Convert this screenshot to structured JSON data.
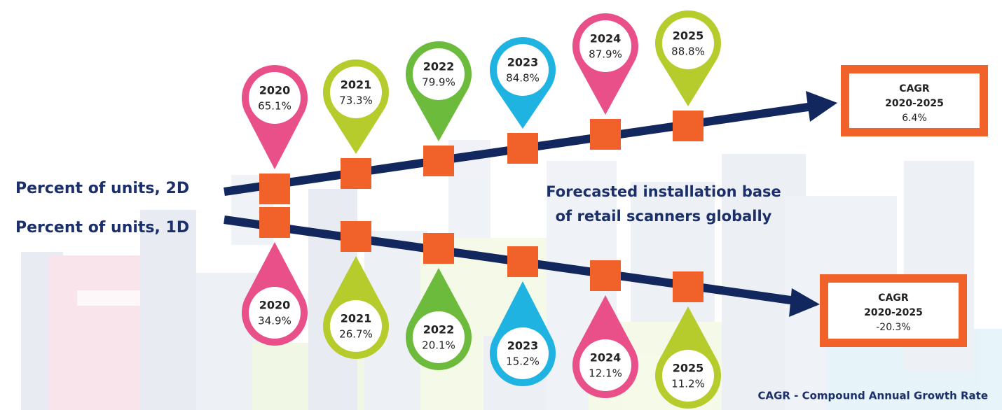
{
  "labels": {
    "line_2d": "Percent of units, 2D",
    "line_1d": "Percent of units, 1D"
  },
  "title_lines": [
    "Forecasted installation base",
    "of retail scanners globally"
  ],
  "series_2d": {
    "pins": [
      {
        "year": "2020",
        "value": "65.1%"
      },
      {
        "year": "2021",
        "value": "73.3%"
      },
      {
        "year": "2022",
        "value": "79.9%"
      },
      {
        "year": "2023",
        "value": "84.8%"
      },
      {
        "year": "2024",
        "value": "87.9%"
      },
      {
        "year": "2025",
        "value": "88.8%"
      }
    ],
    "cagr": {
      "label": "CAGR",
      "period": "2020-2025",
      "value": "6.4%"
    }
  },
  "series_1d": {
    "pins": [
      {
        "year": "2020",
        "value": "34.9%"
      },
      {
        "year": "2021",
        "value": "26.7%"
      },
      {
        "year": "2022",
        "value": "20.1%"
      },
      {
        "year": "2023",
        "value": "15.2%"
      },
      {
        "year": "2024",
        "value": "12.1%"
      },
      {
        "year": "2025",
        "value": "11.2%"
      }
    ],
    "cagr": {
      "label": "CAGR",
      "period": "2020-2025",
      "value": "-20.3%"
    }
  },
  "footnote": "CAGR - Compound Annual Growth Rate"
}
